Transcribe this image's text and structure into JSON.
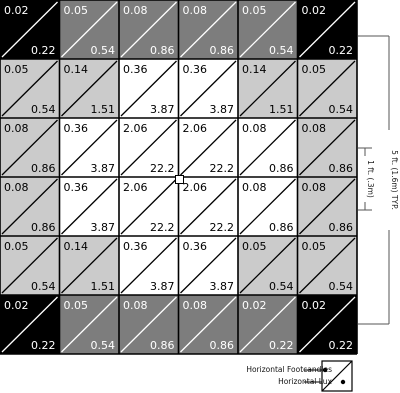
{
  "colors": {
    "black": "#000000",
    "dark": "#7d7d7d",
    "light": "#cbcbcb",
    "white": "#ffffff",
    "line": "#000000",
    "text_dark": "#ffffff",
    "text_light": "#000000"
  },
  "grid": {
    "rows": 6,
    "cols": 6,
    "cells": [
      [
        {
          "fc": "0.02",
          "lux": "0.22",
          "shade": "black"
        },
        {
          "fc": "0.05",
          "lux": "0.54",
          "shade": "dark"
        },
        {
          "fc": "0.08",
          "lux": "0.86",
          "shade": "dark"
        },
        {
          "fc": "0.08",
          "lux": "0.86",
          "shade": "dark"
        },
        {
          "fc": "0.05",
          "lux": "0.54",
          "shade": "dark"
        },
        {
          "fc": "0.02",
          "lux": "0.22",
          "shade": "black"
        }
      ],
      [
        {
          "fc": "0.05",
          "lux": "0.54",
          "shade": "light"
        },
        {
          "fc": "0.14",
          "lux": "1.51",
          "shade": "light"
        },
        {
          "fc": "0.36",
          "lux": "3.87",
          "shade": "white"
        },
        {
          "fc": "0.36",
          "lux": "3.87",
          "shade": "white"
        },
        {
          "fc": "0.14",
          "lux": "1.51",
          "shade": "light"
        },
        {
          "fc": "0.05",
          "lux": "0.54",
          "shade": "light"
        }
      ],
      [
        {
          "fc": "0.08",
          "lux": "0.86",
          "shade": "light"
        },
        {
          "fc": "0.36",
          "lux": "3.87",
          "shade": "white"
        },
        {
          "fc": "2.06",
          "lux": "22.2",
          "shade": "white"
        },
        {
          "fc": "2.06",
          "lux": "22.2",
          "shade": "white"
        },
        {
          "fc": "0.08",
          "lux": "0.86",
          "shade": "white"
        },
        {
          "fc": "0.08",
          "lux": "0.86",
          "shade": "light"
        }
      ],
      [
        {
          "fc": "0.08",
          "lux": "0.86",
          "shade": "light"
        },
        {
          "fc": "0.36",
          "lux": "3.87",
          "shade": "white"
        },
        {
          "fc": "2.06",
          "lux": "22.2",
          "shade": "white"
        },
        {
          "fc": "2.06",
          "lux": "22.2",
          "shade": "white"
        },
        {
          "fc": "0.08",
          "lux": "0.86",
          "shade": "white"
        },
        {
          "fc": "0.08",
          "lux": "0.86",
          "shade": "light"
        }
      ],
      [
        {
          "fc": "0.05",
          "lux": "0.54",
          "shade": "light"
        },
        {
          "fc": "0.14",
          "lux": "1.51",
          "shade": "light"
        },
        {
          "fc": "0.36",
          "lux": "3.87",
          "shade": "white"
        },
        {
          "fc": "0.36",
          "lux": "3.87",
          "shade": "white"
        },
        {
          "fc": "0.05",
          "lux": "0.54",
          "shade": "light"
        },
        {
          "fc": "0.05",
          "lux": "0.54",
          "shade": "light"
        }
      ],
      [
        {
          "fc": "0.02",
          "lux": "0.22",
          "shade": "black"
        },
        {
          "fc": "0.05",
          "lux": "0.54",
          "shade": "dark"
        },
        {
          "fc": "0.08",
          "lux": "0.86",
          "shade": "dark"
        },
        {
          "fc": "0.08",
          "lux": "0.86",
          "shade": "dark"
        },
        {
          "fc": "0.02",
          "lux": "0.22",
          "shade": "dark"
        },
        {
          "fc": "0.02",
          "lux": "0.22",
          "shade": "black"
        }
      ]
    ]
  },
  "dimensions": {
    "overall": "5 ft. (1.6m) TYP.",
    "cell": "1 ft. (.3m)"
  },
  "legend": {
    "top": "Horizontal Footcandles",
    "bottom": "Horizontal Lux"
  }
}
